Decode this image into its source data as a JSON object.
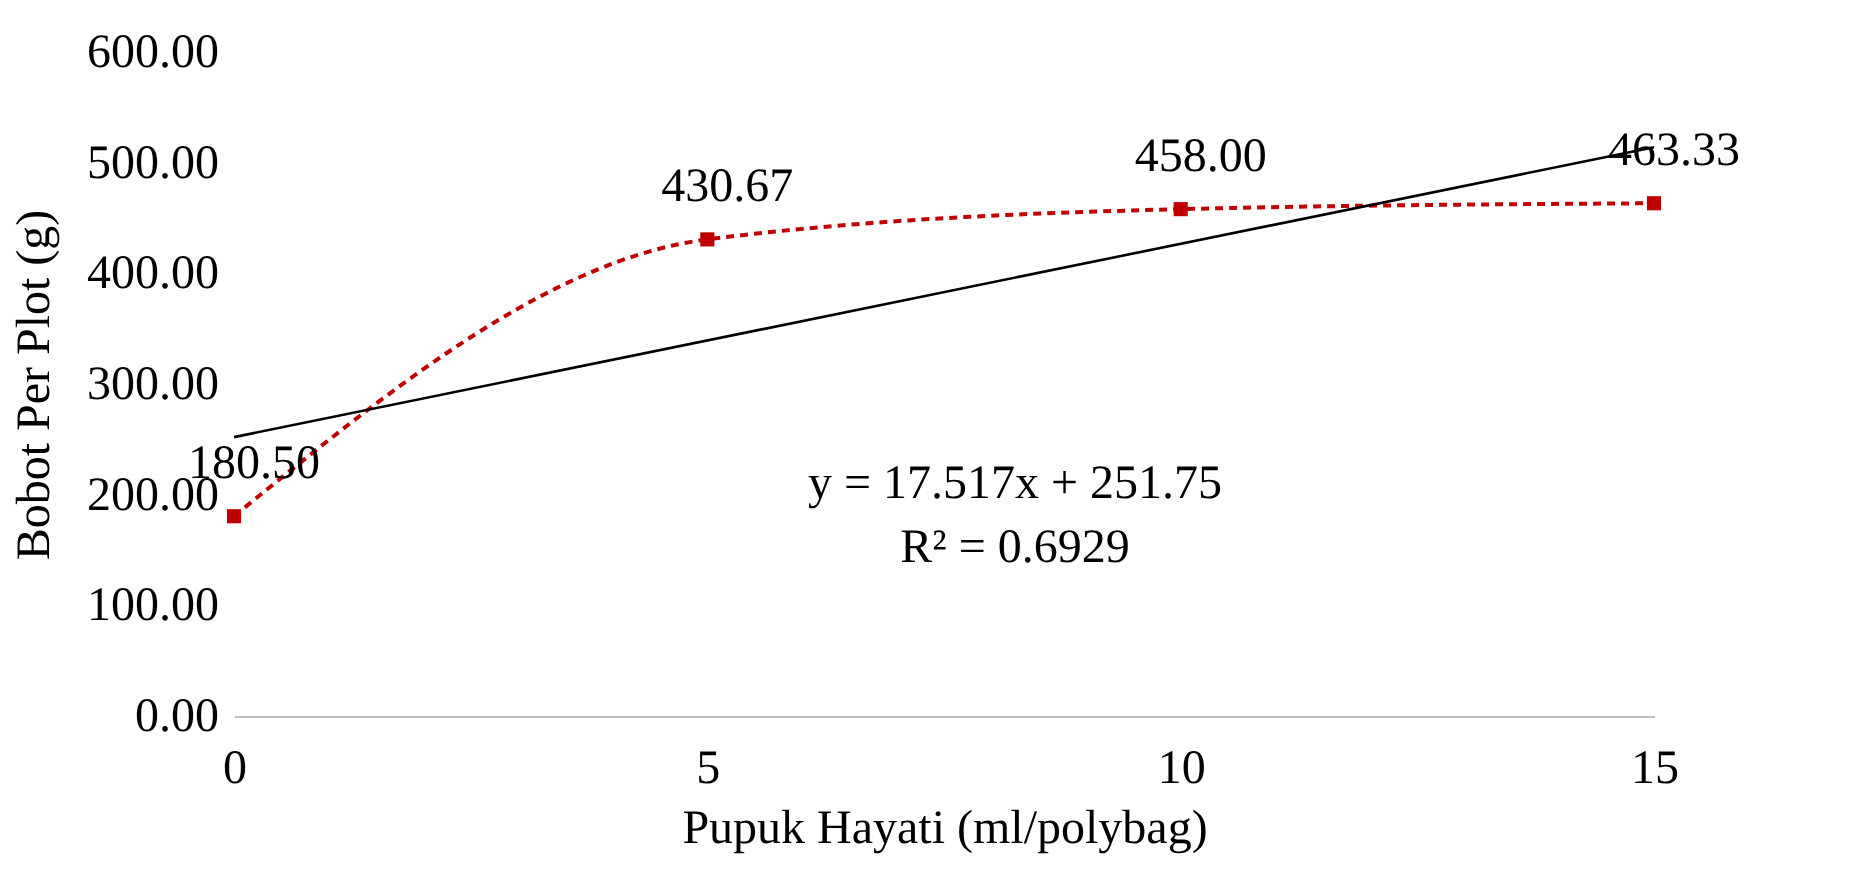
{
  "chart_data": {
    "type": "line",
    "xlabel": "Pupuk Hayati (ml/polybag)",
    "ylabel": "Bobot  Per Plot (g)",
    "x": [
      0,
      5,
      10,
      15
    ],
    "series": [
      {
        "color": "#c00000",
        "values": [
          180.5,
          430.67,
          458.0,
          463.33
        ],
        "value_labels": [
          "180.50",
          "430.67",
          "458.00",
          "463.33"
        ],
        "marker": "square",
        "line_style": "dashed"
      },
      {
        "type": "line",
        "color": "#000000",
        "x": [
          0,
          15
        ],
        "values": [
          252,
          514
        ],
        "marker": "none",
        "line_style": "solid"
      }
    ],
    "xlim": [
      0,
      15
    ],
    "xticks": [
      0,
      5,
      10,
      15
    ],
    "ylim": [
      0,
      600
    ],
    "yticks": [
      {
        "value": 0,
        "label": "0.00"
      },
      {
        "value": 100,
        "label": "100.00"
      },
      {
        "value": 200,
        "label": "200.00"
      },
      {
        "value": 300,
        "label": "300.00"
      },
      {
        "value": 400,
        "label": "400.00"
      },
      {
        "value": 500,
        "label": "500.00"
      },
      {
        "value": 600,
        "label": "600.00"
      }
    ],
    "grid": false,
    "annotations": [
      "y = 17.517x + 251.75",
      "R² = 0.6929"
    ]
  }
}
